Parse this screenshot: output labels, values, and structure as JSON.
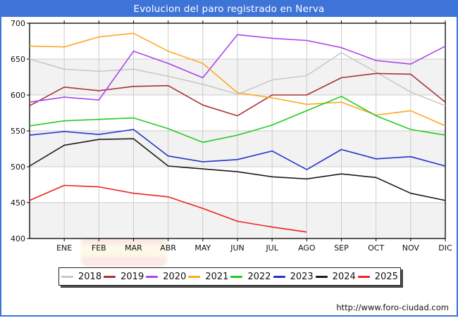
{
  "header": {
    "title": "Evolucion del paro registrado en Nerva",
    "bg_color": "#3e74d8"
  },
  "footer": {
    "url": "http://www.foro-ciudad.com"
  },
  "chart_data": {
    "type": "line",
    "title": "Evolucion del paro registrado en Nerva",
    "xlabel": "",
    "ylabel": "",
    "ylim": [
      400,
      700
    ],
    "y_ticks": [
      700,
      650,
      600,
      550,
      500,
      450,
      400
    ],
    "grid": true,
    "band_fill_colors": [
      "#ffffff",
      "#f2f2f2"
    ],
    "gridline_color": "#cccccc",
    "legend_position": "bottom",
    "categories": [
      "ENE",
      "FEB",
      "MAR",
      "ABR",
      "MAY",
      "JUN",
      "JUL",
      "AGO",
      "SEP",
      "OCT",
      "NOV",
      "DIC"
    ],
    "series": [
      {
        "name": "2018",
        "color": "#c9c9c9",
        "start_value_prev_dec": 650,
        "values": [
          636,
          633,
          636,
          626,
          615,
          601,
          621,
          627,
          659,
          632,
          604,
          585
        ]
      },
      {
        "name": "2019",
        "color": "#aa3333",
        "start_value_prev_dec": 585,
        "values": [
          611,
          606,
          612,
          613,
          586,
          571,
          600,
          600,
          624,
          630,
          629,
          590
        ]
      },
      {
        "name": "2020",
        "color": "#aa44ee",
        "start_value_prev_dec": 590,
        "values": [
          597,
          593,
          661,
          644,
          624,
          684,
          679,
          676,
          666,
          648,
          643,
          668
        ]
      },
      {
        "name": "2021",
        "color": "#ffa822",
        "start_value_prev_dec": 668,
        "values": [
          667,
          681,
          686,
          661,
          644,
          603,
          596,
          587,
          590,
          572,
          578,
          557
        ]
      },
      {
        "name": "2022",
        "color": "#22cc22",
        "start_value_prev_dec": 557,
        "values": [
          564,
          566,
          568,
          553,
          534,
          544,
          558,
          578,
          598,
          571,
          552,
          544
        ]
      },
      {
        "name": "2023",
        "color": "#2233cc",
        "start_value_prev_dec": 544,
        "values": [
          549,
          545,
          552,
          515,
          507,
          510,
          522,
          496,
          524,
          511,
          514,
          501
        ]
      },
      {
        "name": "2024",
        "color": "#1a1a1a",
        "start_value_prev_dec": 501,
        "values": [
          530,
          538,
          539,
          501,
          497,
          493,
          486,
          483,
          490,
          485,
          463,
          453
        ]
      },
      {
        "name": "2025",
        "color": "#ee2222",
        "start_value_prev_dec": 453,
        "values": [
          474,
          472,
          463,
          458,
          442,
          424,
          416,
          409
        ]
      }
    ]
  }
}
